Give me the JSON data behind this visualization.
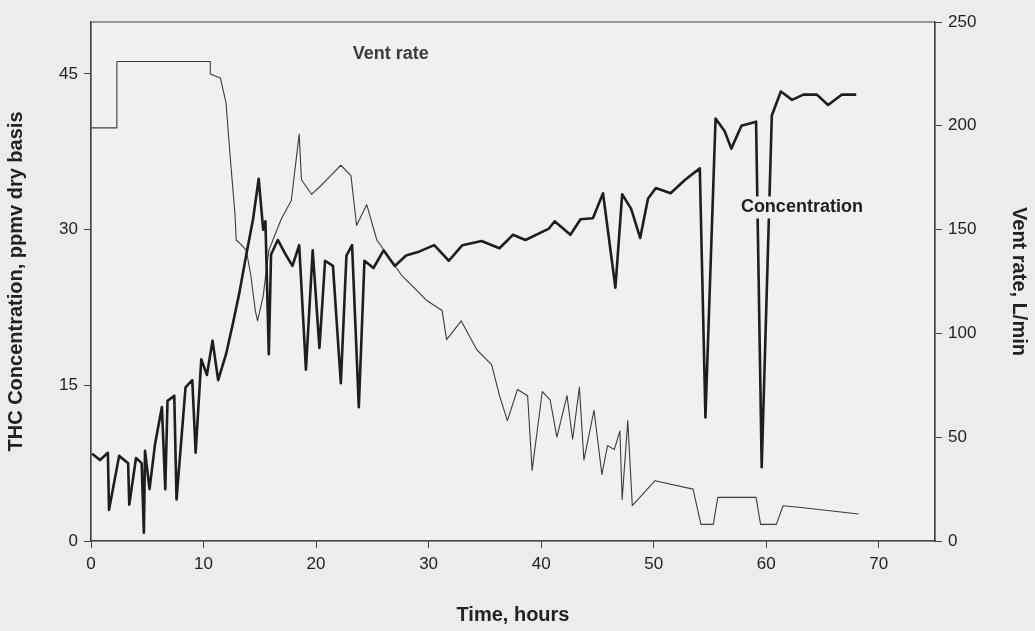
{
  "chart_data": {
    "type": "line",
    "xlabel": "Time, hours",
    "ylabel": "THC Concentration, ppmv dry basis",
    "y2label": "Vent rate, L/min",
    "xlim": [
      0,
      75
    ],
    "xticks": [
      0,
      10,
      20,
      30,
      40,
      50,
      60,
      70
    ],
    "ylim": [
      0,
      50
    ],
    "yticks": [
      0,
      15,
      30,
      45
    ],
    "y2lim": [
      0,
      250
    ],
    "y2ticks": [
      0,
      50,
      100,
      150,
      200,
      250
    ],
    "grid": false,
    "legend": false,
    "marker": "none",
    "line_style": "solid",
    "series": [
      {
        "name": "Concentration",
        "color": "#1e1e1e",
        "x": [
          0.1,
          0.8,
          1.5,
          1.6,
          2.5,
          3.3,
          3.4,
          4.0,
          4.5,
          4.7,
          4.8,
          5.2,
          5.7,
          6.3,
          6.6,
          6.8,
          7.4,
          7.6,
          8.4,
          9.0,
          9.3,
          9.8,
          10.3,
          10.8,
          11.3,
          12.0,
          12.6,
          13.2,
          13.8,
          14.4,
          14.9,
          15.3,
          15.5,
          15.8,
          16.0,
          16.6,
          17.3,
          17.9,
          18.5,
          19.1,
          19.7,
          20.3,
          20.8,
          21.5,
          22.2,
          22.7,
          23.2,
          23.8,
          24.3,
          25.1,
          26.0,
          27.0,
          28.0,
          29.2,
          30.5,
          31.8,
          33.0,
          34.7,
          36.3,
          37.5,
          38.6,
          40.7,
          41.2,
          42.6,
          43.5,
          44.6,
          45.5,
          46.6,
          47.2,
          48.0,
          48.8,
          49.5,
          50.2,
          51.5,
          52.8,
          54.1,
          54.6,
          55.5,
          56.3,
          56.9,
          57.8,
          59.1,
          59.6,
          60.5,
          61.3,
          62.3,
          63.3,
          64.5,
          65.5,
          66.7,
          68.0
        ],
        "values": [
          8.4,
          7.8,
          8.5,
          3.0,
          8.2,
          7.5,
          3.5,
          8.0,
          7.5,
          0.8,
          8.7,
          5.0,
          9.4,
          12.9,
          5.0,
          13.5,
          14.0,
          4.0,
          14.8,
          15.5,
          8.5,
          17.5,
          16.0,
          19.3,
          15.5,
          18.0,
          20.9,
          24.0,
          27.6,
          31.0,
          34.9,
          30.0,
          30.8,
          18.0,
          27.6,
          29.0,
          27.6,
          26.5,
          28.5,
          16.5,
          28.0,
          18.6,
          27.0,
          26.5,
          15.2,
          27.5,
          28.5,
          12.9,
          27.0,
          26.3,
          28.0,
          26.5,
          27.5,
          27.9,
          28.5,
          27.0,
          28.5,
          28.9,
          28.2,
          29.5,
          29.0,
          30.1,
          30.8,
          29.5,
          31.0,
          31.1,
          33.5,
          24.4,
          33.4,
          32.0,
          29.2,
          33.0,
          34.0,
          33.5,
          34.8,
          35.9,
          11.9,
          40.7,
          39.5,
          37.8,
          40.0,
          40.4,
          7.1,
          41.0,
          43.3,
          42.5,
          43.0,
          43.0,
          42.0,
          43.0,
          43.0
        ]
      },
      {
        "name": "Vent rate",
        "color": "#3c3c3c",
        "axis": "y2",
        "x": [
          0,
          2.3,
          2.3,
          10.6,
          10.6,
          11.5,
          12.0,
          12.4,
          12.8,
          12.9,
          13.3,
          13.8,
          14.2,
          14.6,
          14.8,
          15.3,
          15.8,
          16.9,
          17.8,
          18.5,
          18.7,
          19.6,
          20.4,
          21.3,
          22.2,
          23.1,
          23.6,
          24.5,
          25.4,
          26.7,
          27.6,
          28.9,
          29.8,
          31.2,
          31.6,
          32.9,
          34.3,
          35.6,
          36.3,
          37.0,
          37.9,
          38.8,
          39.2,
          40.1,
          40.8,
          41.4,
          42.3,
          42.8,
          43.4,
          43.8,
          44.7,
          45.4,
          45.9,
          46.5,
          47.0,
          47.2,
          47.7,
          48.1,
          50.1,
          53.5,
          54.2,
          55.3,
          55.7,
          59.1,
          59.5,
          60.9,
          61.5,
          63.3,
          68.2
        ],
        "values": [
          199,
          199,
          231,
          231,
          225,
          223,
          211,
          183,
          157,
          145,
          143,
          140,
          128,
          111,
          106,
          118,
          140,
          155,
          164,
          196,
          174,
          167,
          171,
          176,
          181,
          176,
          152,
          162,
          145,
          135,
          128,
          121,
          116,
          111,
          97,
          106,
          92,
          85,
          70,
          58,
          73,
          70,
          34,
          72,
          68,
          50,
          70,
          49,
          74,
          39,
          63,
          32,
          46,
          44,
          53,
          20,
          58,
          17,
          29,
          25,
          8,
          8,
          21,
          21,
          8,
          8,
          17,
          16,
          13
        ]
      }
    ]
  }
}
